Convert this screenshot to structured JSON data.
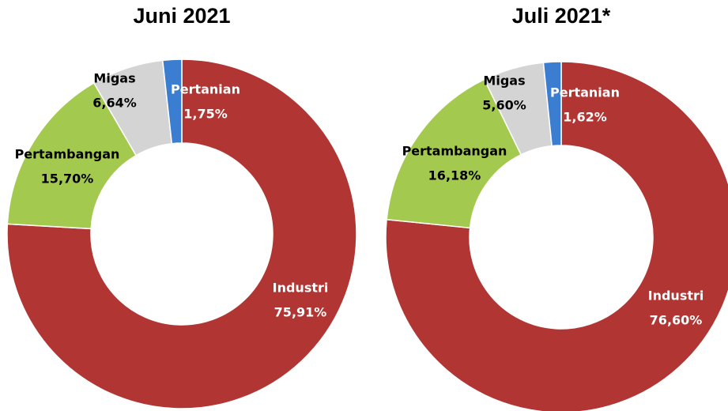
{
  "chart_data": [
    {
      "type": "donut",
      "title": "Juni 2021",
      "categories": [
        "Industri",
        "Pertambangan",
        "Migas",
        "Pertanian"
      ],
      "values": [
        75.91,
        15.7,
        6.64,
        1.75
      ],
      "value_labels": [
        "75,91%",
        "15,70%",
        "6,64%",
        "1,75%"
      ],
      "colors": [
        "#b03533",
        "#a3c94f",
        "#d4d4d4",
        "#3b7dd0"
      ]
    },
    {
      "type": "donut",
      "title": "Juli 2021*",
      "categories": [
        "Industri",
        "Pertambangan",
        "Migas",
        "Pertanian"
      ],
      "values": [
        76.6,
        16.18,
        5.6,
        1.62
      ],
      "value_labels": [
        "76,60%",
        "16,18%",
        "5,60%",
        "1,62%"
      ],
      "colors": [
        "#b03533",
        "#a3c94f",
        "#d4d4d4",
        "#3b7dd0"
      ]
    }
  ]
}
